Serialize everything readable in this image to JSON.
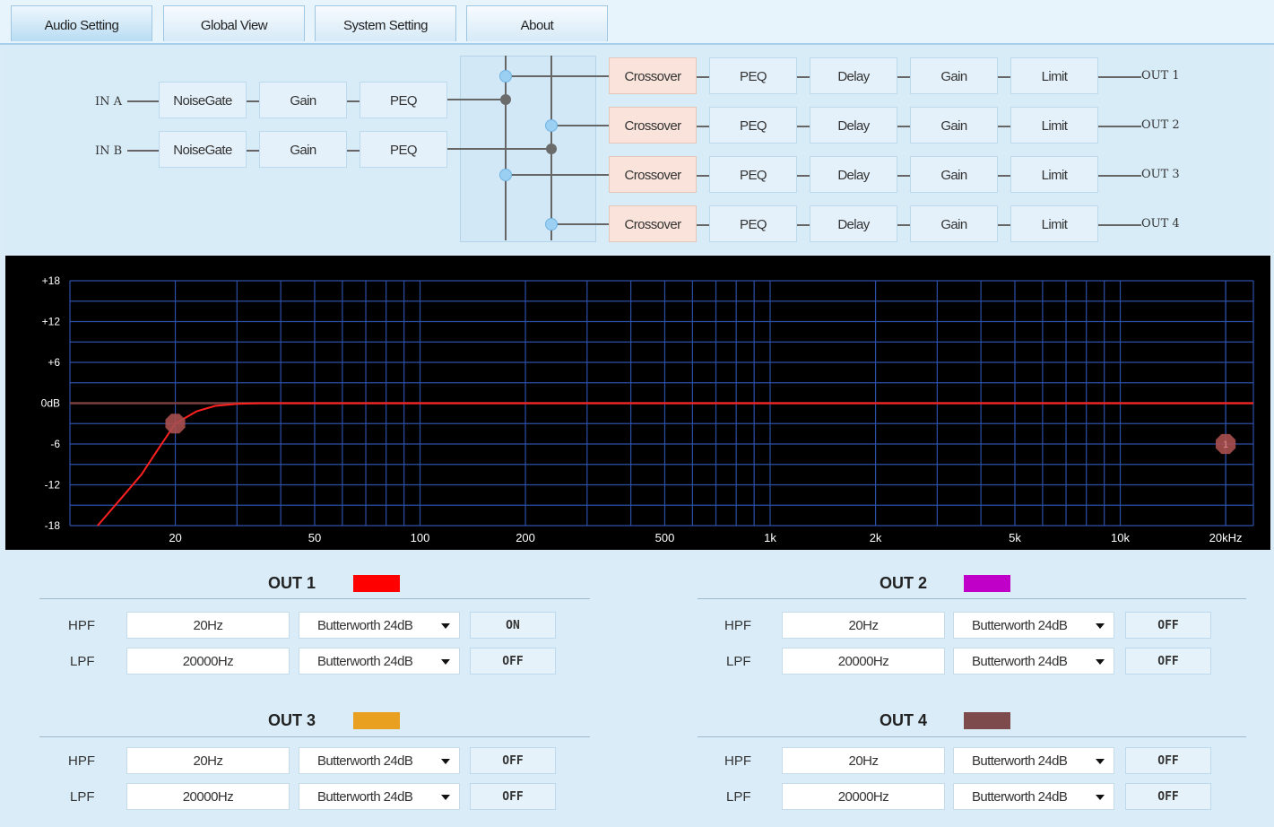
{
  "tabs": [
    {
      "label": "Audio Setting"
    },
    {
      "label": "Global View"
    },
    {
      "label": "System Setting"
    },
    {
      "label": "About"
    }
  ],
  "routing": {
    "inputs": [
      {
        "label": "IN A",
        "blocks": [
          "NoiseGate",
          "Gain",
          "PEQ"
        ]
      },
      {
        "label": "IN B",
        "blocks": [
          "NoiseGate",
          "Gain",
          "PEQ"
        ]
      }
    ],
    "outputs": [
      {
        "label": "OUT 1",
        "blocks": [
          "Crossover",
          "PEQ",
          "Delay",
          "Gain",
          "Limit"
        ]
      },
      {
        "label": "OUT 2",
        "blocks": [
          "Crossover",
          "PEQ",
          "Delay",
          "Gain",
          "Limit"
        ]
      },
      {
        "label": "OUT 3",
        "blocks": [
          "Crossover",
          "PEQ",
          "Delay",
          "Gain",
          "Limit"
        ]
      },
      {
        "label": "OUT 4",
        "blocks": [
          "Crossover",
          "PEQ",
          "Delay",
          "Gain",
          "Limit"
        ]
      }
    ]
  },
  "chart_data": {
    "type": "line",
    "title": "",
    "xlabel": "",
    "ylabel": "",
    "x_scale": "log",
    "xlim": [
      10,
      24000
    ],
    "ylim": [
      -18,
      18
    ],
    "y_ticks": [
      "+18",
      "+12",
      "+6",
      "0dB",
      "-6",
      "-12",
      "-18"
    ],
    "y_tick_values": [
      18,
      12,
      6,
      0,
      -6,
      -12,
      -18
    ],
    "x_ticks": [
      "20",
      "50",
      "100",
      "200",
      "500",
      "1k",
      "2k",
      "5k",
      "10k",
      "20kHz"
    ],
    "x_tick_values": [
      20,
      50,
      100,
      200,
      500,
      1000,
      2000,
      5000,
      10000,
      20000
    ],
    "series": [
      {
        "color": "#ff2020",
        "points": [
          [
            12,
            -18
          ],
          [
            14,
            -14
          ],
          [
            16,
            -10.5
          ],
          [
            18,
            -6.5
          ],
          [
            20,
            -3
          ],
          [
            23,
            -1.2
          ],
          [
            26,
            -0.4
          ],
          [
            30,
            -0.1
          ],
          [
            35,
            0
          ],
          [
            24000,
            0
          ]
        ]
      },
      {
        "color": "#7a3f3f",
        "points": [
          [
            10,
            0
          ],
          [
            24000,
            0
          ]
        ]
      }
    ],
    "markers": [
      {
        "x": 20,
        "y": -3,
        "label": "",
        "color": "#a84f4f"
      },
      {
        "x": 20000,
        "y": -6,
        "label": "1",
        "color": "#a84f4f"
      }
    ]
  },
  "outputs": [
    {
      "title": "OUT 1",
      "color": "#ff0000",
      "hpf": {
        "label": "HPF",
        "freq": "20Hz",
        "type": "Butterworth 24dB",
        "state": "ON"
      },
      "lpf": {
        "label": "LPF",
        "freq": "20000Hz",
        "type": "Butterworth 24dB",
        "state": "OFF"
      }
    },
    {
      "title": "OUT 2",
      "color": "#c000c8",
      "hpf": {
        "label": "HPF",
        "freq": "20Hz",
        "type": "Butterworth 24dB",
        "state": "OFF"
      },
      "lpf": {
        "label": "LPF",
        "freq": "20000Hz",
        "type": "Butterworth 24dB",
        "state": "OFF"
      }
    },
    {
      "title": "OUT 3",
      "color": "#e9a020",
      "hpf": {
        "label": "HPF",
        "freq": "20Hz",
        "type": "Butterworth 24dB",
        "state": "OFF"
      },
      "lpf": {
        "label": "LPF",
        "freq": "20000Hz",
        "type": "Butterworth 24dB",
        "state": "OFF"
      }
    },
    {
      "title": "OUT 4",
      "color": "#7d4b4b",
      "hpf": {
        "label": "HPF",
        "freq": "20Hz",
        "type": "Butterworth 24dB",
        "state": "OFF"
      },
      "lpf": {
        "label": "LPF",
        "freq": "20000Hz",
        "type": "Butterworth 24dB",
        "state": "OFF"
      }
    }
  ]
}
